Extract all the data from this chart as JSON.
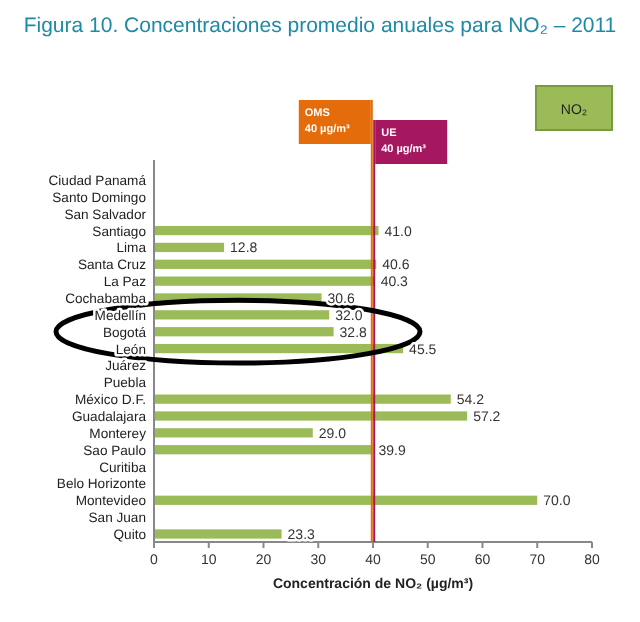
{
  "chart_data": {
    "type": "bar",
    "orientation": "horizontal",
    "title": "Figura 10. Concentraciones promedio anuales para NO₂ – 2011",
    "xlabel": "Concentración de NO₂ (µg/m³)",
    "categories": [
      "Ciudad Panamá",
      "Santo Domingo",
      "San Salvador",
      "Santiago",
      "Lima",
      "Santa Cruz",
      "La Paz",
      "Cochabamba",
      "Medellín",
      "Bogotá",
      "León",
      "Juárez",
      "Puebla",
      "México D.F.",
      "Guadalajara",
      "Monterey",
      "Sao Paulo",
      "Curitiba",
      "Belo Horizonte",
      "Montevideo",
      "San Juan",
      "Quito"
    ],
    "series": [
      {
        "name": "NO₂",
        "color": "#9bbb59",
        "values": [
          null,
          null,
          null,
          41.0,
          12.8,
          40.6,
          40.3,
          30.6,
          32.0,
          32.8,
          45.5,
          null,
          null,
          54.2,
          57.2,
          29.0,
          39.9,
          null,
          null,
          70.0,
          null,
          23.3
        ],
        "value_labels": [
          null,
          null,
          null,
          "41.0",
          "12.8",
          "40.6",
          "40.3",
          "30.6",
          "32.0",
          "32.8",
          "45.5",
          null,
          null,
          "54.2",
          "57.2",
          "29.0",
          "39.9",
          null,
          null,
          "70.0",
          null,
          "23.3"
        ]
      }
    ],
    "xlim": [
      0,
      80
    ],
    "xticks": [
      0,
      10,
      20,
      30,
      40,
      50,
      60,
      70,
      80
    ],
    "legend": "top right",
    "ref_lines": [
      {
        "axis": "x",
        "value": 40,
        "label": "OMS\n40 µg/m³",
        "color": "#e46c0a"
      },
      {
        "axis": "x",
        "value": 40,
        "label": "UE\n40 µg/m³",
        "color": "#a5175e"
      }
    ]
  }
}
